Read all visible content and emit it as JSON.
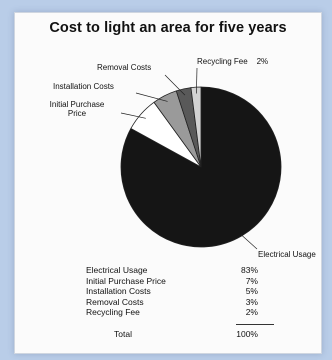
{
  "chart_data": {
    "type": "pie",
    "title": "Cost to light an area for five years",
    "categories": [
      "Electrical Usage",
      "Initial Purchase Price",
      "Installation Costs",
      "Removal Costs",
      "Recycling Fee"
    ],
    "values": [
      83,
      7,
      5,
      3,
      2
    ],
    "value_labels": [
      "83%",
      "7%",
      "5%",
      "3%",
      "2%"
    ],
    "callout_labels": [
      "Electrical Usage",
      "Initial Purchase\nPrice",
      "Installation Costs",
      "Removal Costs",
      "Recycling Fee    2%"
    ],
    "slice_colors": [
      "#151515",
      "#ffffff",
      "#9a9a9a",
      "#595959",
      "#d2d2d2"
    ],
    "legend": "table-below",
    "total_label": "Total",
    "total_value": "100%"
  }
}
